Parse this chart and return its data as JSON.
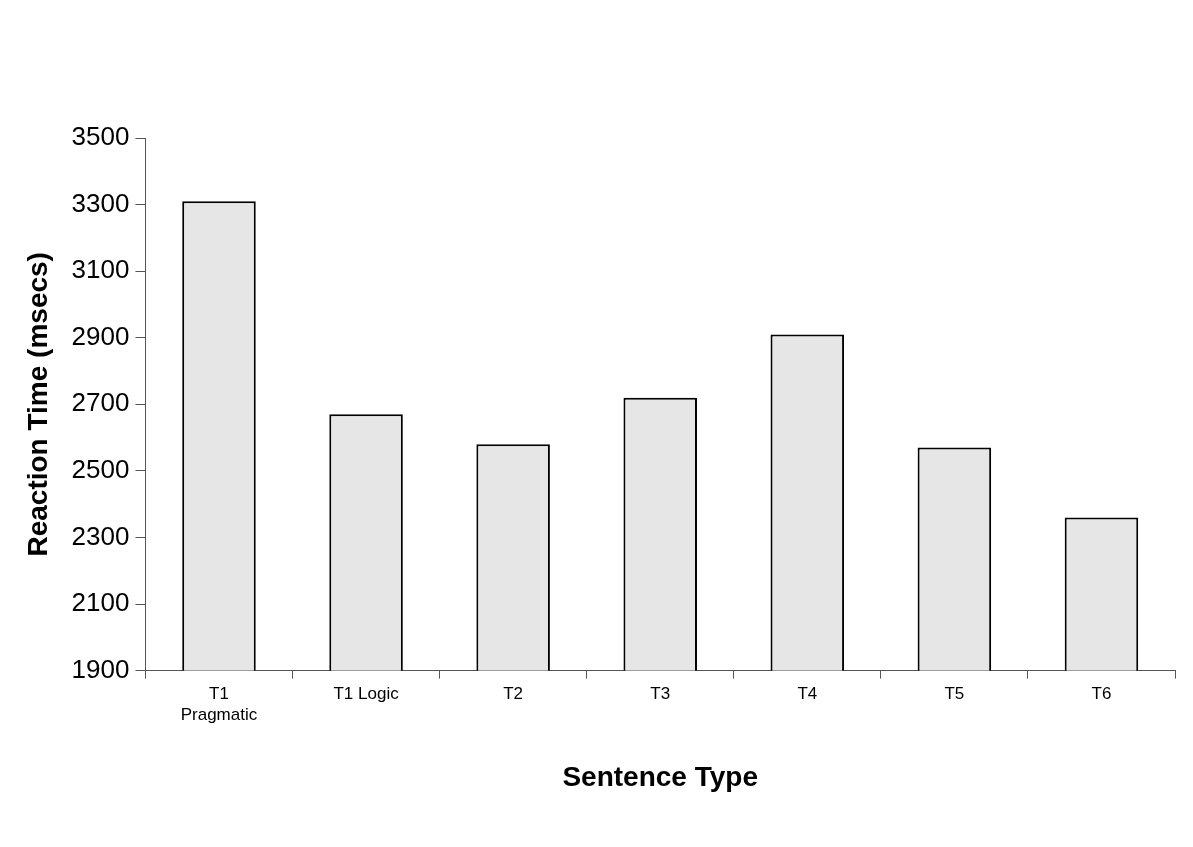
{
  "chart_data": {
    "type": "bar",
    "xlabel": "Sentence Type",
    "ylabel": "Reaction Time (msecs)",
    "categories": [
      "T1 Pragmatic",
      "T1 Logic",
      "T2",
      "T3",
      "T4",
      "T5",
      "T6"
    ],
    "values": [
      3310,
      2670,
      2580,
      2720,
      2910,
      2570,
      2360
    ],
    "color": "#e6e6e6",
    "ylim": [
      1900,
      3500
    ],
    "yticks": [
      1900,
      2100,
      2300,
      2500,
      2700,
      2900,
      3100,
      3300,
      3500
    ],
    "grid": false,
    "legend": false
  }
}
